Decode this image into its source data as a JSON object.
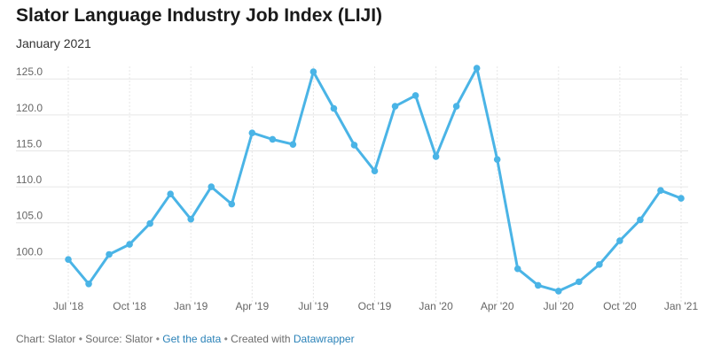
{
  "header": {
    "title": "Slator Language Industry Job Index (LIJI)",
    "subtitle": "January 2021"
  },
  "footer": {
    "chart_label": "Chart:",
    "chart_by": "Slator",
    "source_label": "Source:",
    "source": "Slator",
    "get_data": "Get the data",
    "created_with": "Created with",
    "tool": "Datawrapper",
    "separator": "•"
  },
  "colors": {
    "line": "#4ab4e6",
    "grid": "#e6e6e6",
    "axis_text": "#666666"
  },
  "chart_data": {
    "type": "line",
    "title": "Slator Language Industry Job Index (LIJI)",
    "subtitle": "January 2021",
    "xlabel": "",
    "ylabel": "",
    "ylim": [
      95.0,
      126.5
    ],
    "grid": true,
    "x_tick_labels": [
      "Jul '18",
      "Oct '18",
      "Jan '19",
      "Apr '19",
      "Jul '19",
      "Oct '19",
      "Jan '20",
      "Apr '20",
      "Jul '20",
      "Oct '20",
      "Jan '21"
    ],
    "y_tick_labels": [
      "100.0",
      "105.0",
      "110.0",
      "115.0",
      "120.0",
      "125.0"
    ],
    "y_ticks": [
      100,
      105,
      110,
      115,
      120,
      125
    ],
    "x": [
      "Jul 2018",
      "Aug 2018",
      "Sep 2018",
      "Oct 2018",
      "Nov 2018",
      "Dec 2018",
      "Jan 2019",
      "Feb 2019",
      "Mar 2019",
      "Apr 2019",
      "May 2019",
      "Jun 2019",
      "Jul 2019",
      "Aug 2019",
      "Sep 2019",
      "Oct 2019",
      "Nov 2019",
      "Dec 2019",
      "Jan 2020",
      "Feb 2020",
      "Mar 2020",
      "Apr 2020",
      "May 2020",
      "Jun 2020",
      "Jul 2020",
      "Aug 2020",
      "Sep 2020",
      "Oct 2020",
      "Nov 2020",
      "Dec 2020",
      "Jan 2021"
    ],
    "series": [
      {
        "name": "LIJI",
        "values": [
          99.9,
          96.5,
          100.6,
          102.0,
          104.9,
          109.0,
          105.5,
          110.0,
          107.6,
          117.5,
          116.6,
          115.9,
          126.0,
          120.9,
          115.8,
          112.2,
          121.2,
          122.7,
          114.2,
          121.2,
          126.5,
          113.8,
          98.6,
          96.3,
          95.5,
          96.8,
          99.2,
          102.5,
          105.4,
          109.5,
          108.4
        ]
      }
    ]
  }
}
